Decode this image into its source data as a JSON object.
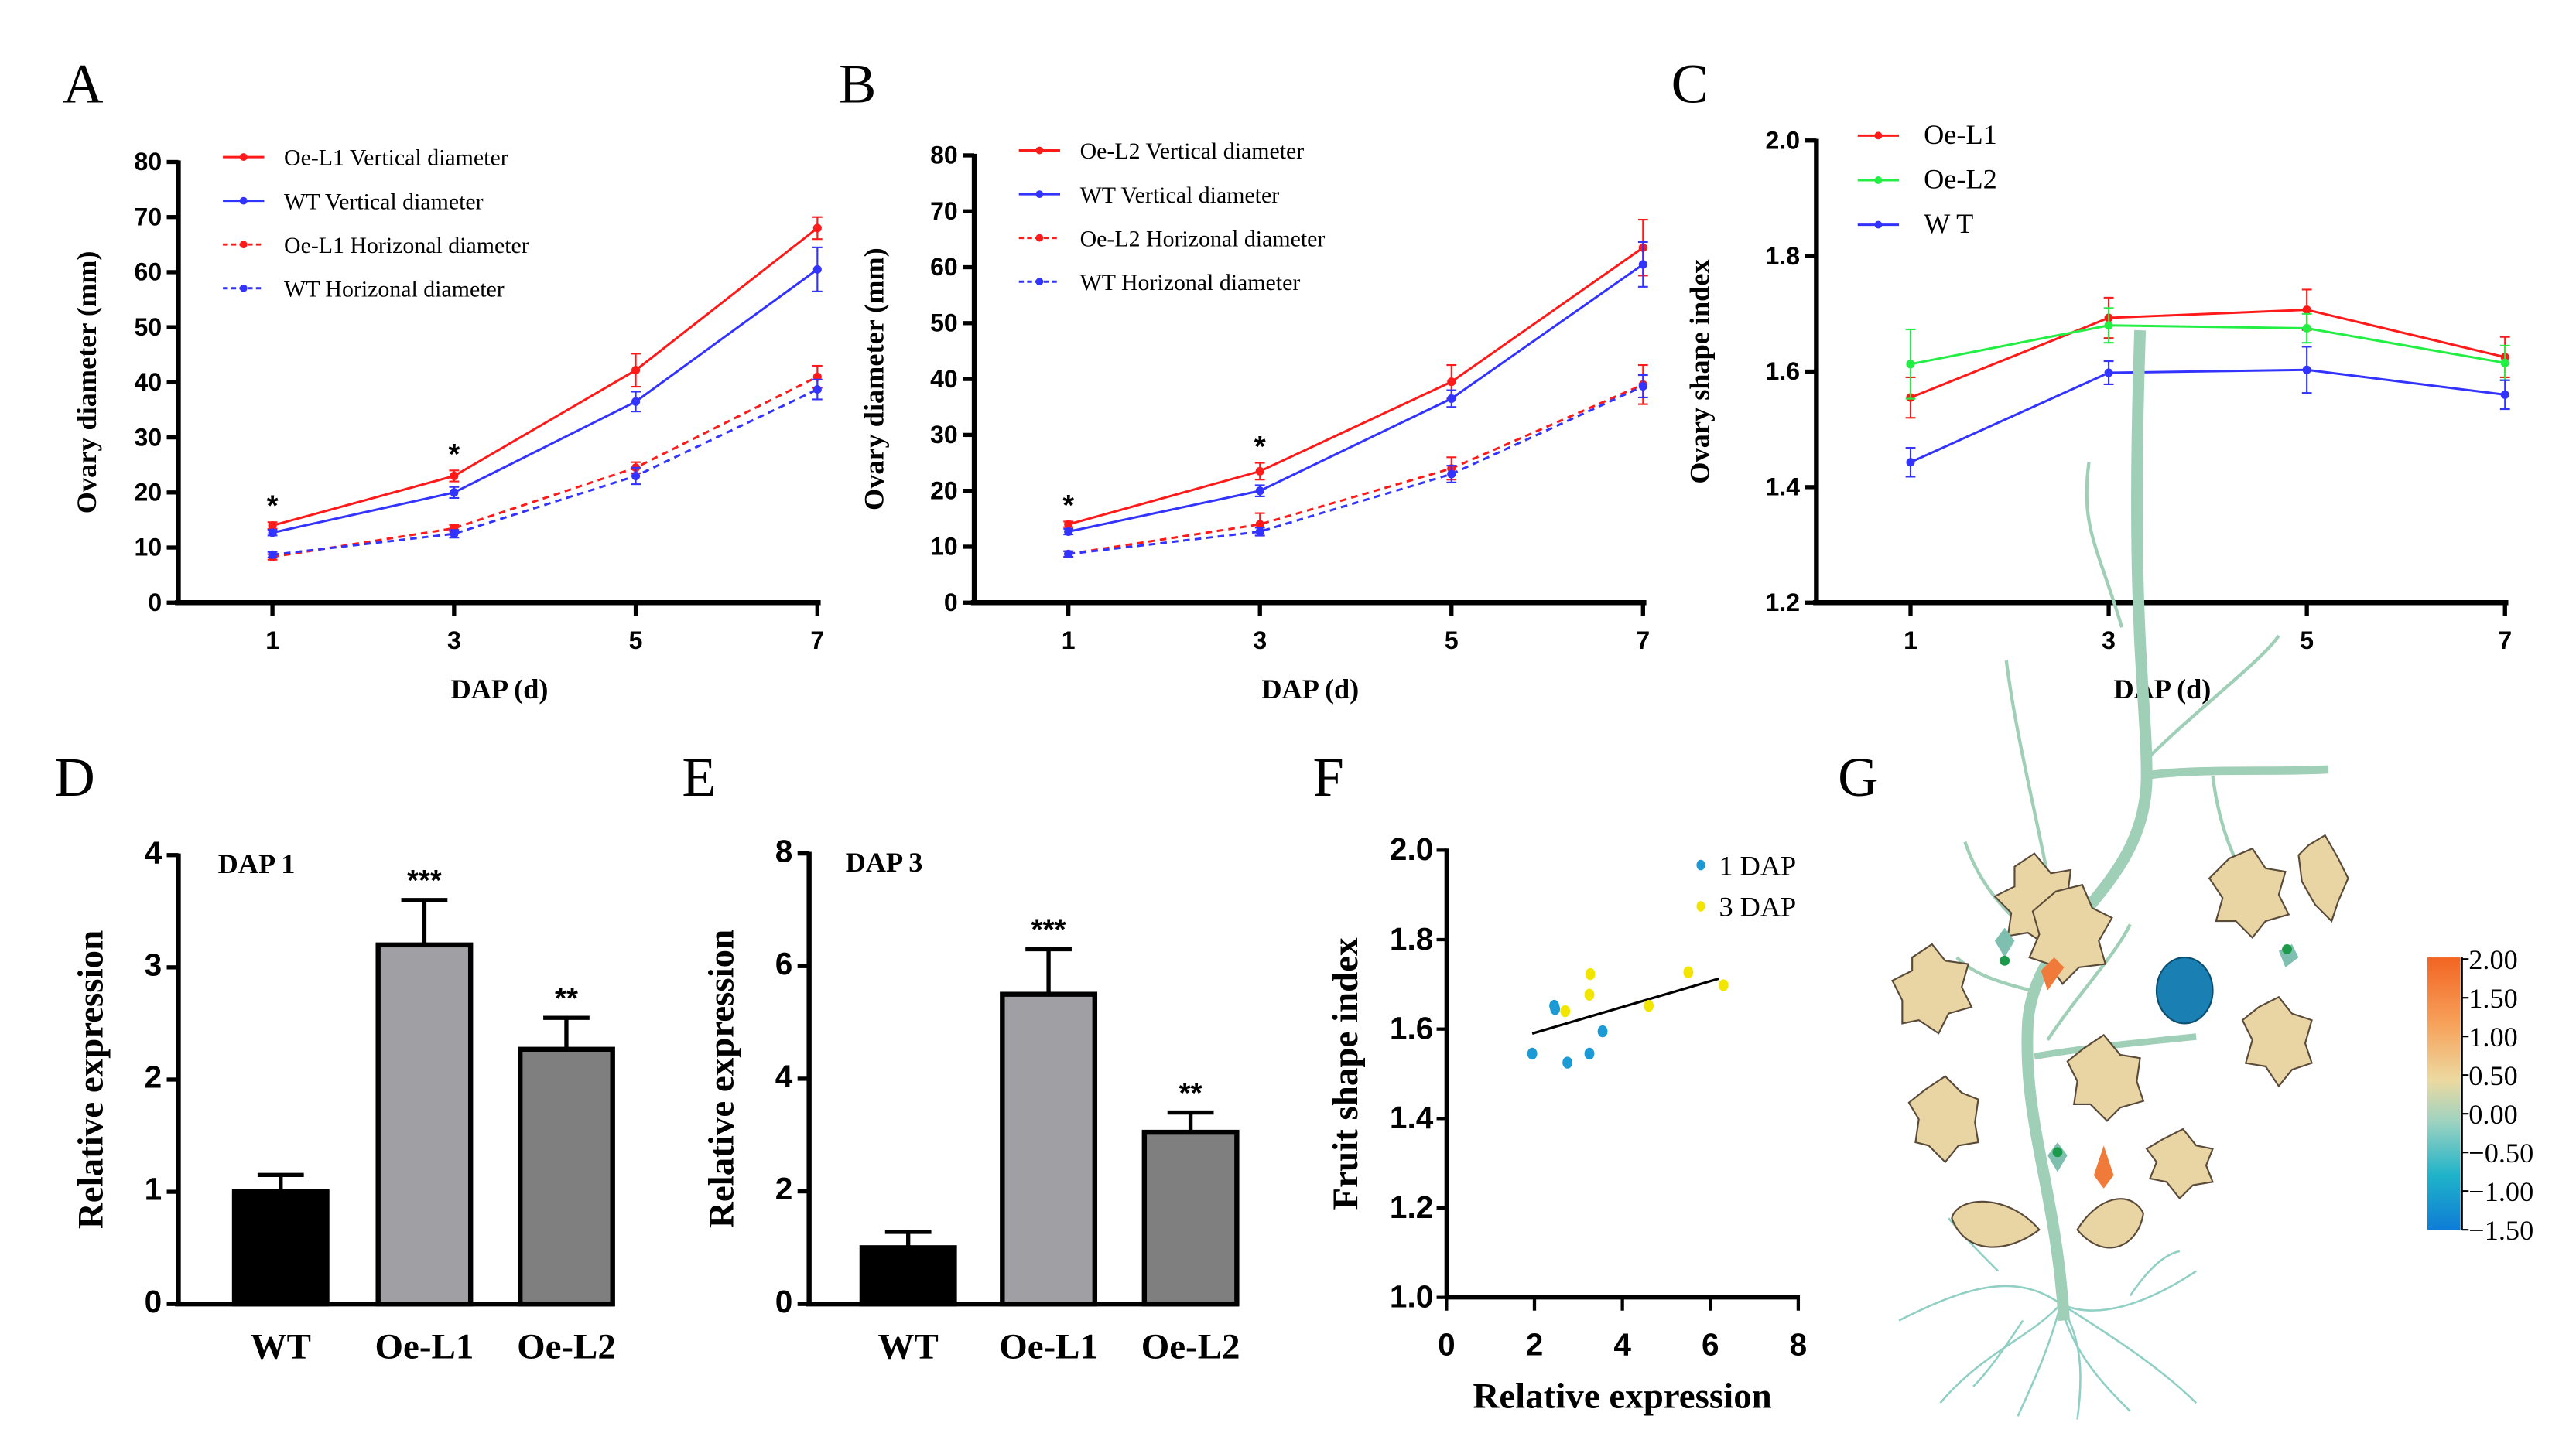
{
  "panels": {
    "A": "A",
    "B": "B",
    "C": "C",
    "D": "D",
    "E": "E",
    "F": "F",
    "G": "G"
  },
  "colorbar": {
    "labels": [
      "2.00",
      "1.50",
      "1.00",
      "0.50",
      "0.00",
      "−0.50",
      "−1.00",
      "−1.50"
    ],
    "colors": [
      "#f26522",
      "#f7a35c",
      "#ecd9a0",
      "#9fd3c0",
      "#1fb3c9",
      "#0f7cd6"
    ]
  },
  "chart_data": [
    {
      "id": "A",
      "type": "line",
      "title": "",
      "xlabel": "DAP (d)",
      "ylabel": "Ovary diameter (mm)",
      "x": [
        1,
        3,
        5,
        7
      ],
      "ylim": [
        0,
        80
      ],
      "yticks": [
        0,
        10,
        20,
        30,
        40,
        50,
        60,
        70,
        80
      ],
      "series": [
        {
          "name": "Oe-L1 Vertical diameter",
          "color": "#ff1a1a",
          "dashed": false,
          "values": [
            14,
            23,
            42.2,
            68
          ],
          "errors": [
            0.6,
            1,
            3,
            2
          ]
        },
        {
          "name": "WT Vertical diameter",
          "color": "#3333ff",
          "dashed": false,
          "values": [
            12.7,
            20,
            36.5,
            60.5
          ],
          "errors": [
            0.5,
            1,
            1.8,
            4
          ]
        },
        {
          "name": "Oe-L1 Horizonal diameter",
          "color": "#ff1a1a",
          "dashed": true,
          "values": [
            8.3,
            13.5,
            24.5,
            41
          ],
          "errors": [
            0.5,
            0.6,
            1,
            2
          ]
        },
        {
          "name": "WT Horizonal diameter",
          "color": "#3333ff",
          "dashed": true,
          "values": [
            8.7,
            12.5,
            23,
            38.7
          ],
          "errors": [
            0.5,
            0.7,
            1.5,
            1.8
          ]
        }
      ],
      "annotations": [
        {
          "x": 1,
          "text": "*"
        },
        {
          "x": 3,
          "text": "*"
        }
      ],
      "legend": "top-left"
    },
    {
      "id": "B",
      "type": "line",
      "title": "",
      "xlabel": "DAP (d)",
      "ylabel": "Ovary diameter (mm)",
      "x": [
        1,
        3,
        5,
        7
      ],
      "ylim": [
        0,
        80
      ],
      "yticks": [
        0,
        10,
        20,
        30,
        40,
        50,
        60,
        70,
        80
      ],
      "series": [
        {
          "name": "Oe-L2 Vertical diameter",
          "color": "#ff1a1a",
          "dashed": false,
          "values": [
            14,
            23.5,
            39.5,
            63.5
          ],
          "errors": [
            0.5,
            1.5,
            3,
            5
          ]
        },
        {
          "name": "WT Vertical diameter",
          "color": "#3333ff",
          "dashed": false,
          "values": [
            12.7,
            20,
            36.5,
            60.5
          ],
          "errors": [
            0.5,
            1,
            1.5,
            4
          ]
        },
        {
          "name": "Oe-L2 Horizonal diameter",
          "color": "#ff1a1a",
          "dashed": true,
          "values": [
            8.7,
            14,
            24,
            39
          ],
          "errors": [
            0.5,
            2,
            2,
            3.5
          ]
        },
        {
          "name": "WT Horizonal diameter",
          "color": "#3333ff",
          "dashed": true,
          "values": [
            8.7,
            12.7,
            23,
            38.7
          ],
          "errors": [
            0.5,
            0.7,
            1.5,
            2
          ]
        }
      ],
      "annotations": [
        {
          "x": 1,
          "text": "*"
        },
        {
          "x": 3,
          "text": "*"
        }
      ],
      "legend": "top-left"
    },
    {
      "id": "C",
      "type": "line",
      "title": "",
      "xlabel": "DAP (d)",
      "ylabel": "Ovary shape index",
      "x": [
        1,
        3,
        5,
        7
      ],
      "ylim": [
        1.2,
        2.0
      ],
      "yticks": [
        "1.2",
        "1.4",
        "1.6",
        "1.8",
        "2.0"
      ],
      "series": [
        {
          "name": "Oe-L1",
          "color": "#ff1a1a",
          "dashed": false,
          "values": [
            1.555,
            1.693,
            1.707,
            1.625
          ],
          "errors": [
            0.035,
            0.035,
            0.035,
            0.035
          ]
        },
        {
          "name": "Oe-L2",
          "color": "#22ee44",
          "dashed": false,
          "values": [
            1.613,
            1.68,
            1.675,
            1.615
          ],
          "errors": [
            0.06,
            0.03,
            0.025,
            0.03
          ]
        },
        {
          "name": "W T",
          "color": "#3333ff",
          "dashed": false,
          "values": [
            1.443,
            1.598,
            1.603,
            1.56
          ],
          "errors": [
            0.025,
            0.02,
            0.04,
            0.025
          ]
        }
      ],
      "annotations": [],
      "legend": "top-left"
    },
    {
      "id": "D",
      "type": "bar",
      "title": "DAP 1",
      "xlabel": "",
      "ylabel": "Relative expression",
      "categories": [
        "WT",
        "Oe-L1",
        "Oe-L2"
      ],
      "values": [
        1.0,
        3.2,
        2.27
      ],
      "errors": [
        0.15,
        0.4,
        0.28
      ],
      "colors": [
        "#000000",
        "#a0a0a4",
        "#7f7f7f"
      ],
      "significance": [
        "",
        "***",
        "**"
      ],
      "ylim": [
        0,
        4
      ],
      "yticks": [
        0,
        1,
        2,
        3,
        4
      ]
    },
    {
      "id": "E",
      "type": "bar",
      "title": "DAP 3",
      "xlabel": "",
      "ylabel": "Relative expression",
      "categories": [
        "WT",
        "Oe-L1",
        "Oe-L2"
      ],
      "values": [
        1.0,
        5.5,
        3.05
      ],
      "errors": [
        0.28,
        0.8,
        0.35
      ],
      "colors": [
        "#000000",
        "#a0a0a4",
        "#7f7f7f"
      ],
      "significance": [
        "",
        "***",
        "**"
      ],
      "ylim": [
        0,
        8
      ],
      "yticks": [
        0,
        2,
        4,
        6,
        8
      ]
    },
    {
      "id": "F",
      "type": "scatter",
      "title": "",
      "xlabel": "Relative expression",
      "ylabel": "Fruit shape index",
      "xlim": [
        0,
        8
      ],
      "xticks": [
        0,
        2,
        4,
        6,
        8
      ],
      "ylim": [
        1.0,
        2.0
      ],
      "yticks": [
        "1.0",
        "1.2",
        "1.4",
        "1.6",
        "1.8",
        "2.0"
      ],
      "series": [
        {
          "name": "1 DAP",
          "color": "#1b9ad6",
          "points": [
            [
              1.95,
              1.545
            ],
            [
              2.45,
              1.652
            ],
            [
              2.47,
              1.645
            ],
            [
              2.75,
              1.525
            ],
            [
              3.25,
              1.545
            ],
            [
              3.55,
              1.595
            ]
          ]
        },
        {
          "name": "3 DAP",
          "color": "#f2e600",
          "points": [
            [
              2.7,
              1.64
            ],
            [
              3.25,
              1.677
            ],
            [
              3.27,
              1.723
            ],
            [
              4.6,
              1.652
            ],
            [
              5.5,
              1.727
            ],
            [
              6.3,
              1.698
            ]
          ]
        }
      ],
      "fit_line": [
        [
          1.95,
          1.59
        ],
        [
          6.2,
          1.713
        ]
      ],
      "legend": "top-right"
    }
  ]
}
